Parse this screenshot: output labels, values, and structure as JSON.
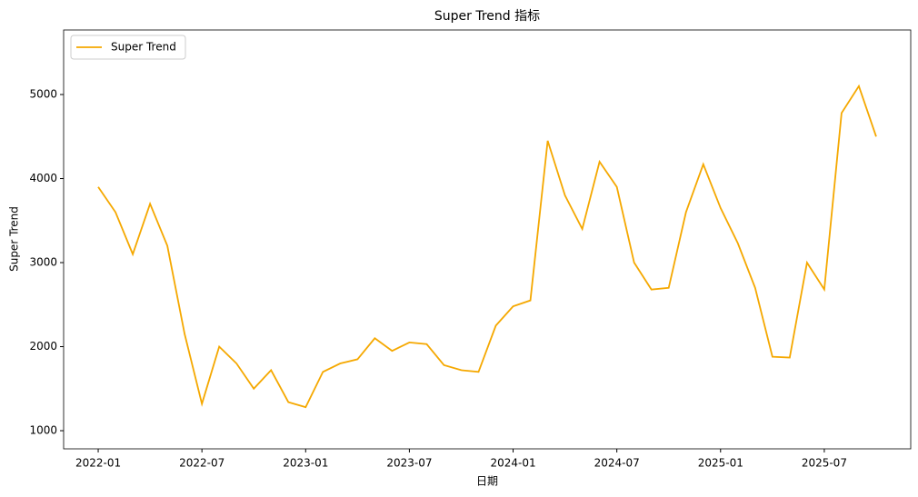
{
  "chart_data": {
    "type": "line",
    "title": "Super Trend 指标",
    "xlabel": "日期",
    "ylabel": "Super Trend",
    "x": [
      "2022-01",
      "2022-02",
      "2022-03",
      "2022-04",
      "2022-05",
      "2022-06",
      "2022-07",
      "2022-08",
      "2022-09",
      "2022-10",
      "2022-11",
      "2022-12",
      "2023-01",
      "2023-02",
      "2023-03",
      "2023-04",
      "2023-05",
      "2023-06",
      "2023-07",
      "2023-08",
      "2023-09",
      "2023-10",
      "2023-11",
      "2023-12",
      "2024-01",
      "2024-02",
      "2024-03",
      "2024-04",
      "2024-05",
      "2024-06",
      "2024-07",
      "2024-08",
      "2024-09",
      "2024-10",
      "2024-11",
      "2024-12",
      "2025-01",
      "2025-02",
      "2025-03",
      "2025-04",
      "2025-05",
      "2025-06",
      "2025-07",
      "2025-08",
      "2025-09",
      "2025-10"
    ],
    "series": [
      {
        "name": "Super Trend",
        "color": "#f5a800",
        "values": [
          3900,
          3600,
          3100,
          3700,
          3200,
          2150,
          1320,
          2000,
          1800,
          1500,
          1720,
          1340,
          1280,
          1700,
          1800,
          1850,
          2100,
          1950,
          2050,
          2030,
          1780,
          1720,
          1700,
          2250,
          2480,
          2550,
          4450,
          3800,
          3400,
          4200,
          3900,
          3000,
          2680,
          2700,
          3600,
          4170,
          3650,
          3230,
          2700,
          1880,
          1870,
          3000,
          2680,
          4780,
          5100,
          4500
        ]
      }
    ],
    "xlim": [
      "2021-11",
      "2025-12"
    ],
    "xticks": [
      "2022-01",
      "2022-07",
      "2023-01",
      "2023-07",
      "2024-01",
      "2024-07",
      "2025-01",
      "2025-07"
    ],
    "ylim": [
      784,
      5768
    ],
    "yticks": [
      1000,
      2000,
      3000,
      4000,
      5000
    ],
    "legend": "upper left",
    "grid": false
  }
}
